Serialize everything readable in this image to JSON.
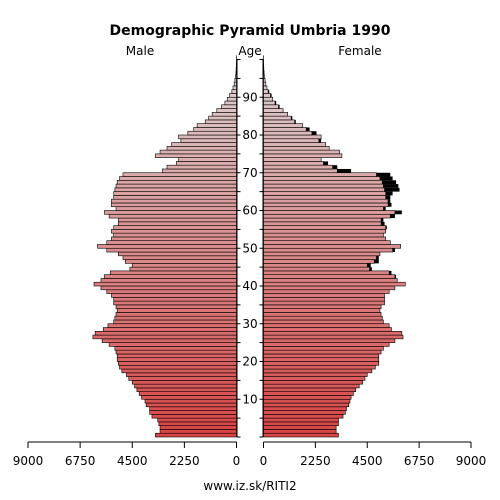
{
  "chart_data": {
    "type": "bar",
    "title": "Demographic Pyramid Umbria 1990",
    "left_label": "Male",
    "center_label": "Age",
    "right_label": "Female",
    "source": "www.iz.sk/RITI2",
    "x_ticks_left": [
      "9000",
      "6750",
      "4500",
      "2250",
      "0"
    ],
    "x_ticks_right": [
      "0",
      "2250",
      "4500",
      "6750",
      "9000"
    ],
    "x_tick_values": [
      0,
      2250,
      4500,
      6750,
      9000
    ],
    "xlim": [
      0,
      9000
    ],
    "age_ticks": [
      10,
      20,
      30,
      40,
      50,
      60,
      70,
      80,
      90
    ],
    "ages": [
      0,
      1,
      2,
      3,
      4,
      5,
      6,
      7,
      8,
      9,
      10,
      11,
      12,
      13,
      14,
      15,
      16,
      17,
      18,
      19,
      20,
      21,
      22,
      23,
      24,
      25,
      26,
      27,
      28,
      29,
      30,
      31,
      32,
      33,
      34,
      35,
      36,
      37,
      38,
      39,
      40,
      41,
      42,
      43,
      44,
      45,
      46,
      47,
      48,
      49,
      50,
      51,
      52,
      53,
      54,
      55,
      56,
      57,
      58,
      59,
      60,
      61,
      62,
      63,
      64,
      65,
      66,
      67,
      68,
      69,
      70,
      71,
      72,
      73,
      74,
      75,
      76,
      77,
      78,
      79,
      80,
      81,
      82,
      83,
      84,
      85,
      86,
      87,
      88,
      89,
      90,
      91,
      92,
      93,
      94,
      95,
      96,
      97,
      98,
      99,
      100
    ],
    "male": [
      3500,
      3300,
      3300,
      3350,
      3400,
      3650,
      3750,
      3750,
      3900,
      3950,
      4100,
      4200,
      4300,
      4400,
      4500,
      4650,
      4750,
      4950,
      5050,
      5100,
      5150,
      5150,
      5200,
      5250,
      5500,
      5800,
      6200,
      6100,
      5750,
      5550,
      5300,
      5250,
      5200,
      5150,
      5200,
      5300,
      5300,
      5400,
      5600,
      5850,
      6150,
      5850,
      5700,
      5450,
      4600,
      4500,
      4800,
      4900,
      5100,
      5600,
      6000,
      5600,
      5400,
      5300,
      5400,
      5300,
      5100,
      5100,
      5500,
      5700,
      5200,
      5400,
      5400,
      5300,
      5300,
      5250,
      5200,
      5150,
      5050,
      4900,
      3200,
      3000,
      2600,
      2500,
      3500,
      3300,
      3000,
      2800,
      2400,
      2500,
      2100,
      1850,
      1700,
      1350,
      1200,
      1050,
      850,
      650,
      500,
      400,
      300,
      200,
      150,
      100,
      70,
      40,
      25,
      15,
      8,
      5,
      3
    ],
    "female": [
      3250,
      3150,
      3150,
      3250,
      3250,
      3450,
      3550,
      3600,
      3700,
      3750,
      3800,
      3900,
      4000,
      4150,
      4300,
      4400,
      4500,
      4700,
      4850,
      5000,
      5000,
      5000,
      5100,
      5200,
      5450,
      5700,
      6050,
      6000,
      5550,
      5450,
      5200,
      5150,
      5100,
      5050,
      5100,
      5250,
      5250,
      5250,
      5450,
      5700,
      6150,
      5800,
      5750,
      5550,
      4700,
      4650,
      5000,
      5000,
      5050,
      5700,
      5950,
      5500,
      5300,
      5200,
      5300,
      5350,
      5250,
      5200,
      5700,
      6000,
      5300,
      5550,
      5500,
      5500,
      5600,
      5900,
      5850,
      5750,
      5600,
      5500,
      3800,
      3200,
      2800,
      2500,
      3400,
      3300,
      2850,
      2700,
      2500,
      2500,
      2300,
      2000,
      1700,
      1400,
      1250,
      1050,
      850,
      700,
      550,
      400,
      350,
      250,
      150,
      100,
      70,
      40,
      25,
      15,
      8,
      5,
      3
    ],
    "female_excess_shown": true,
    "colors": {
      "young": "#d94545",
      "old": "#dcd6d6",
      "excess": "#000000",
      "outline": "#000000",
      "axis": "#000000"
    },
    "grid": false
  }
}
